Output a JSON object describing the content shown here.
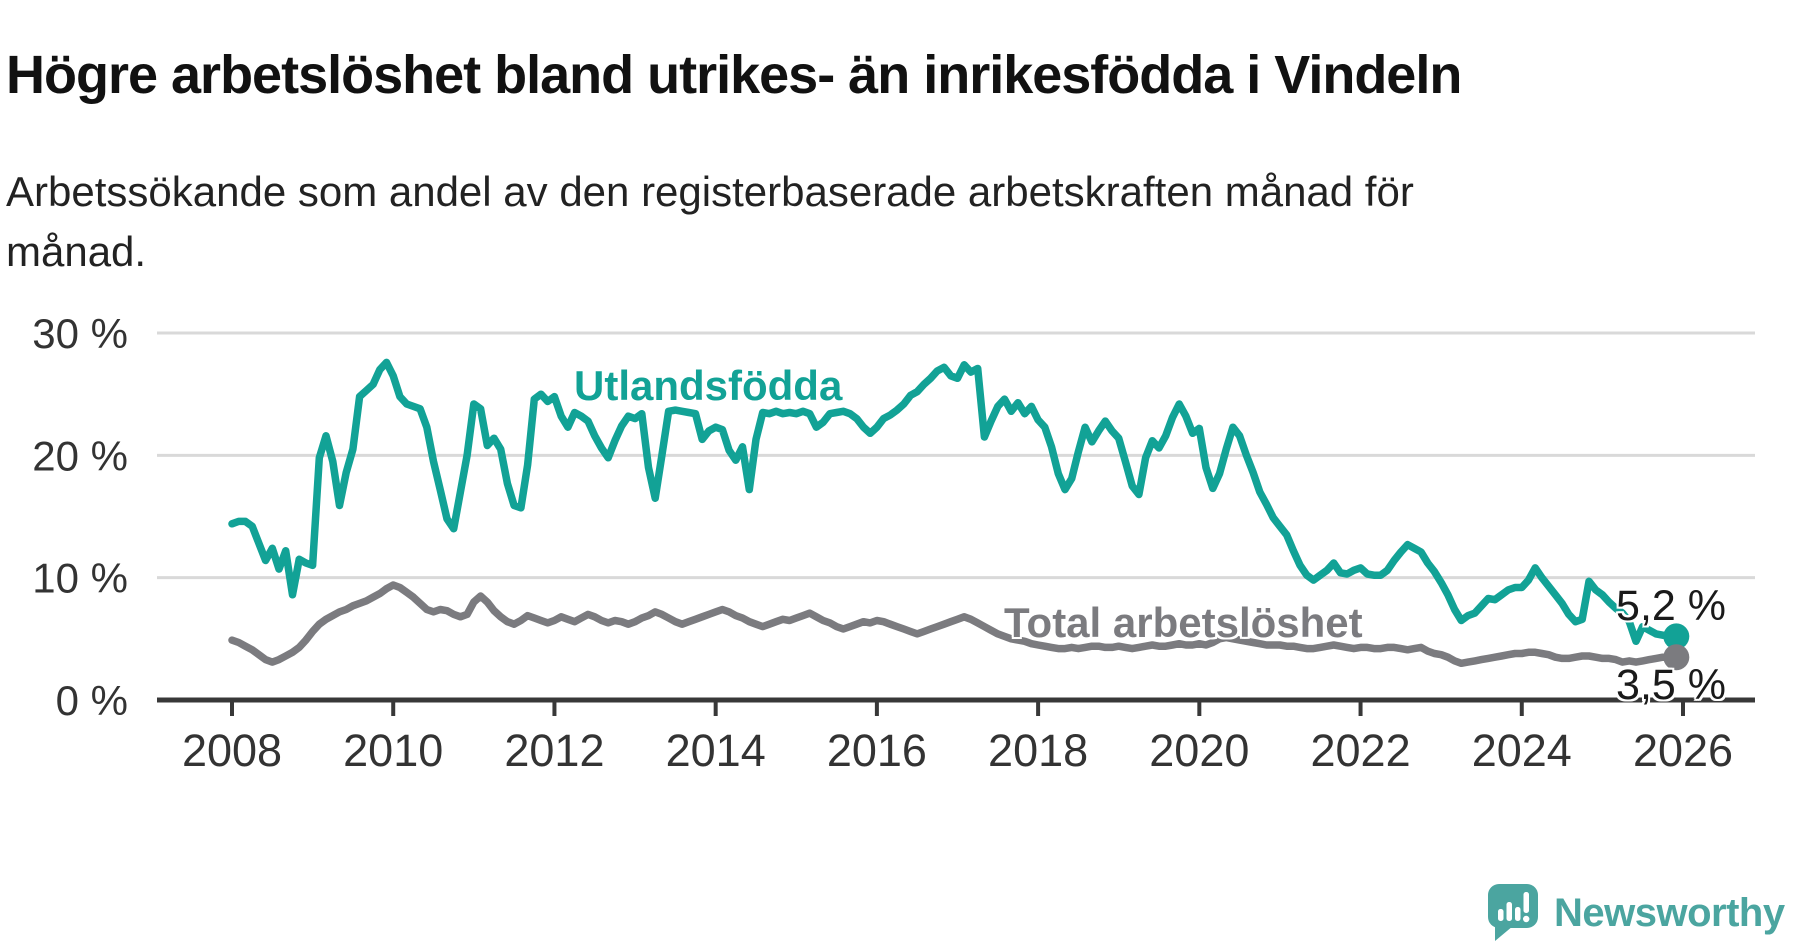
{
  "chart_data": {
    "type": "line",
    "title": "Högre arbetslöshet bland utrikes- än inrikesfödda i Vindeln",
    "subtitle": "Arbetssökande som andel av den registerbaserade arbetskraften månad för månad.",
    "x_start_year": 2008,
    "points_per_year": 12,
    "x_ticks": [
      2008,
      2010,
      2012,
      2014,
      2016,
      2018,
      2020,
      2022,
      2024,
      2026
    ],
    "y_ticks": [
      {
        "value": 0,
        "label": "0 %"
      },
      {
        "value": 10,
        "label": "10 %"
      },
      {
        "value": 20,
        "label": "20 %"
      },
      {
        "value": 30,
        "label": "30 %"
      }
    ],
    "ylim": [
      0,
      30
    ],
    "grid": "horizontal",
    "legend_position": "inline-labels",
    "style": {
      "grid_color": "#d9d9d9",
      "axis_color": "#383838",
      "tick_label_color": "#333333",
      "background": "#ffffff"
    },
    "series": [
      {
        "id": "utlandsfodda",
        "name": "Utlandsfödda",
        "color": "#12a296",
        "end_label": "5,2 %",
        "values": [
          14.4,
          14.6,
          14.6,
          14.2,
          12.8,
          11.4,
          12.4,
          10.7,
          12.2,
          8.6,
          11.5,
          11.2,
          11.0,
          19.8,
          21.6,
          19.5,
          15.9,
          18.6,
          20.5,
          24.8,
          25.3,
          25.8,
          27.0,
          27.6,
          26.5,
          24.8,
          24.2,
          24.0,
          23.8,
          22.3,
          19.5,
          17.2,
          14.8,
          14.0,
          17.0,
          20.0,
          24.2,
          23.8,
          20.8,
          21.4,
          20.5,
          17.7,
          15.9,
          15.7,
          19.2,
          24.6,
          25.0,
          24.4,
          24.8,
          23.2,
          22.3,
          23.5,
          23.2,
          22.8,
          21.6,
          20.6,
          19.8,
          21.2,
          22.4,
          23.2,
          23.0,
          23.4,
          19.0,
          16.5,
          20.0,
          23.6,
          23.7,
          23.6,
          23.5,
          23.4,
          21.3,
          22.0,
          22.3,
          22.1,
          20.4,
          19.6,
          20.7,
          17.2,
          21.3,
          23.5,
          23.4,
          23.6,
          23.4,
          23.5,
          23.4,
          23.6,
          23.4,
          22.3,
          22.7,
          23.4,
          23.5,
          23.6,
          23.4,
          23.0,
          22.3,
          21.8,
          22.3,
          23.0,
          23.3,
          23.7,
          24.2,
          24.9,
          25.2,
          25.8,
          26.3,
          26.9,
          27.2,
          26.5,
          26.3,
          27.4,
          26.8,
          27.1,
          21.5,
          22.8,
          24.0,
          24.6,
          23.6,
          24.3,
          23.4,
          24.0,
          22.9,
          22.3,
          20.7,
          18.5,
          17.2,
          18.1,
          20.3,
          22.3,
          21.1,
          22.0,
          22.8,
          22.0,
          21.4,
          19.5,
          17.5,
          16.8,
          19.8,
          21.2,
          20.6,
          21.6,
          23.1,
          24.2,
          23.2,
          21.8,
          22.2,
          19.0,
          17.3,
          18.5,
          20.5,
          22.3,
          21.6,
          20.0,
          18.6,
          17.0,
          16.0,
          14.9,
          14.2,
          13.5,
          12.2,
          11.0,
          10.2,
          9.8,
          10.2,
          10.6,
          11.2,
          10.4,
          10.3,
          10.6,
          10.8,
          10.3,
          10.2,
          10.2,
          10.6,
          11.4,
          12.1,
          12.7,
          12.4,
          12.1,
          11.2,
          10.5,
          9.6,
          8.6,
          7.4,
          6.5,
          6.9,
          7.1,
          7.7,
          8.3,
          8.2,
          8.6,
          9.0,
          9.2,
          9.2,
          9.8,
          10.8,
          10.0,
          9.3,
          8.6,
          7.9,
          7.0,
          6.4,
          6.6,
          9.7,
          9.0,
          8.6,
          8.0,
          7.5,
          7.1,
          6.4,
          4.8,
          6.0,
          5.7,
          5.4,
          5.3,
          5.2,
          5.2
        ]
      },
      {
        "id": "total",
        "name": "Total arbetslöshet",
        "color": "#7b7b7f",
        "end_label": "3,5 %",
        "values": [
          4.9,
          4.7,
          4.4,
          4.1,
          3.7,
          3.3,
          3.1,
          3.3,
          3.6,
          3.9,
          4.3,
          4.9,
          5.6,
          6.2,
          6.6,
          6.9,
          7.2,
          7.4,
          7.7,
          7.9,
          8.1,
          8.4,
          8.7,
          9.1,
          9.4,
          9.2,
          8.8,
          8.4,
          7.9,
          7.4,
          7.2,
          7.4,
          7.3,
          7.0,
          6.8,
          7.0,
          8.0,
          8.5,
          8.0,
          7.3,
          6.8,
          6.4,
          6.2,
          6.5,
          6.9,
          6.7,
          6.5,
          6.3,
          6.5,
          6.8,
          6.6,
          6.4,
          6.7,
          7.0,
          6.8,
          6.5,
          6.3,
          6.5,
          6.4,
          6.2,
          6.4,
          6.7,
          6.9,
          7.2,
          7.0,
          6.7,
          6.4,
          6.2,
          6.4,
          6.6,
          6.8,
          7.0,
          7.2,
          7.4,
          7.2,
          6.9,
          6.7,
          6.4,
          6.2,
          6.0,
          6.2,
          6.4,
          6.6,
          6.5,
          6.7,
          6.9,
          7.1,
          6.8,
          6.5,
          6.3,
          6.0,
          5.8,
          6.0,
          6.2,
          6.4,
          6.3,
          6.5,
          6.4,
          6.2,
          6.0,
          5.8,
          5.6,
          5.4,
          5.6,
          5.8,
          6.0,
          6.2,
          6.4,
          6.6,
          6.8,
          6.6,
          6.3,
          6.0,
          5.7,
          5.4,
          5.2,
          5.0,
          4.9,
          4.8,
          4.6,
          4.5,
          4.4,
          4.3,
          4.2,
          4.2,
          4.3,
          4.2,
          4.3,
          4.4,
          4.4,
          4.3,
          4.3,
          4.4,
          4.3,
          4.2,
          4.3,
          4.4,
          4.5,
          4.4,
          4.4,
          4.5,
          4.6,
          4.5,
          4.5,
          4.6,
          4.5,
          4.7,
          5.0,
          5.1,
          5.0,
          4.9,
          4.8,
          4.7,
          4.6,
          4.5,
          4.5,
          4.5,
          4.4,
          4.4,
          4.3,
          4.2,
          4.2,
          4.3,
          4.4,
          4.5,
          4.4,
          4.3,
          4.2,
          4.3,
          4.3,
          4.2,
          4.2,
          4.3,
          4.3,
          4.2,
          4.1,
          4.2,
          4.3,
          4.0,
          3.8,
          3.7,
          3.5,
          3.2,
          3.0,
          3.1,
          3.2,
          3.3,
          3.4,
          3.5,
          3.6,
          3.7,
          3.8,
          3.8,
          3.9,
          3.9,
          3.8,
          3.7,
          3.5,
          3.4,
          3.4,
          3.5,
          3.6,
          3.6,
          3.5,
          3.4,
          3.4,
          3.3,
          3.1,
          3.2,
          3.1,
          3.2,
          3.3,
          3.4,
          3.5,
          3.5,
          3.5
        ]
      }
    ]
  },
  "branding": {
    "name": "Newsworthy",
    "color": "#4ba5a0",
    "icon": "newsworthy-speech-bubble-chart-logo"
  }
}
